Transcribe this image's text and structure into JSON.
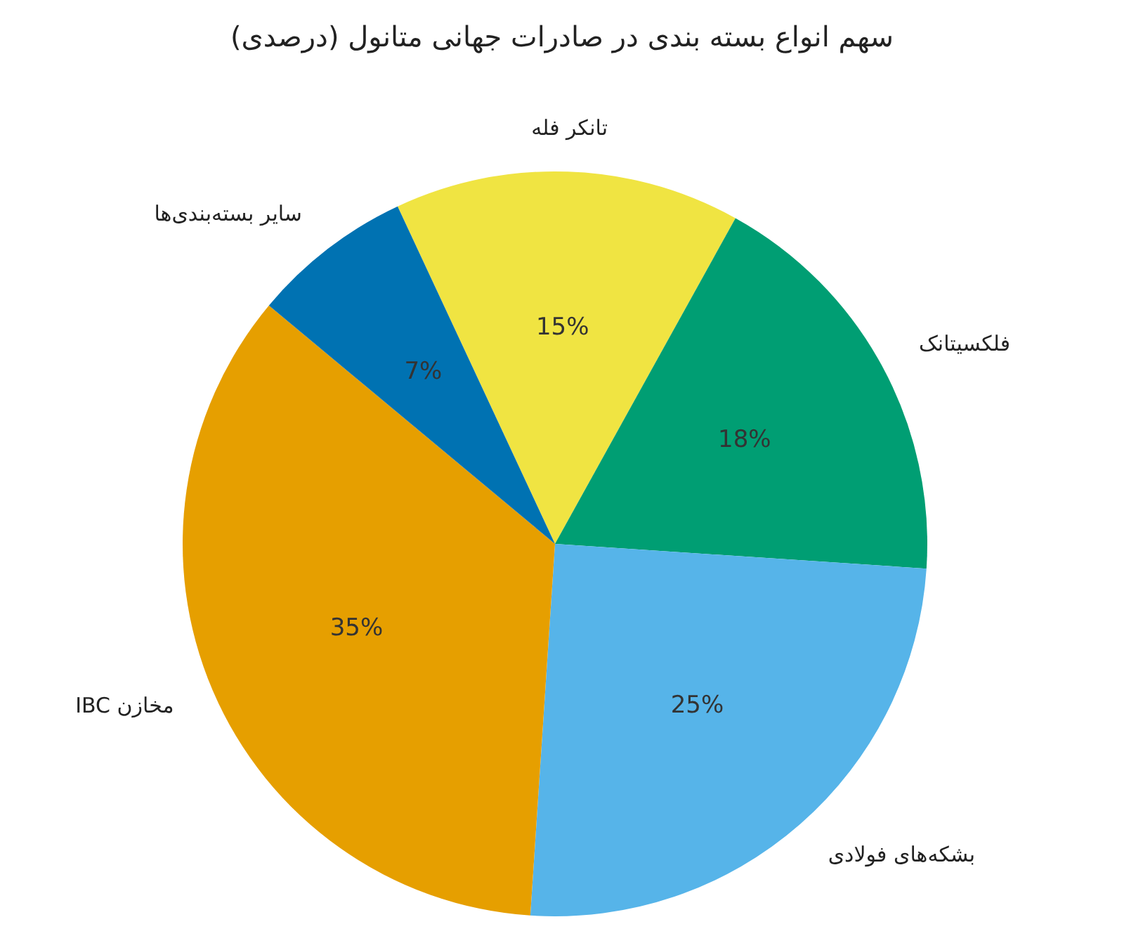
{
  "chart_data": {
    "type": "pie",
    "title": "سهم انواع بسته بندی در صادرات جهانی متانول (درصدی)",
    "categories": [
      "تانکر فله",
      "فلکسیتانک",
      "بشکه‌های فولادی",
      "مخازن IBC",
      "سایر بسته‌بندی‌ها"
    ],
    "values": [
      15,
      18,
      25,
      35,
      7
    ],
    "value_labels": [
      "15%",
      "18%",
      "25%",
      "35%",
      "7%"
    ],
    "colors": [
      "#f0e442",
      "#009e73",
      "#56b4e9",
      "#e69f00",
      "#0072b2"
    ],
    "legend": false
  }
}
